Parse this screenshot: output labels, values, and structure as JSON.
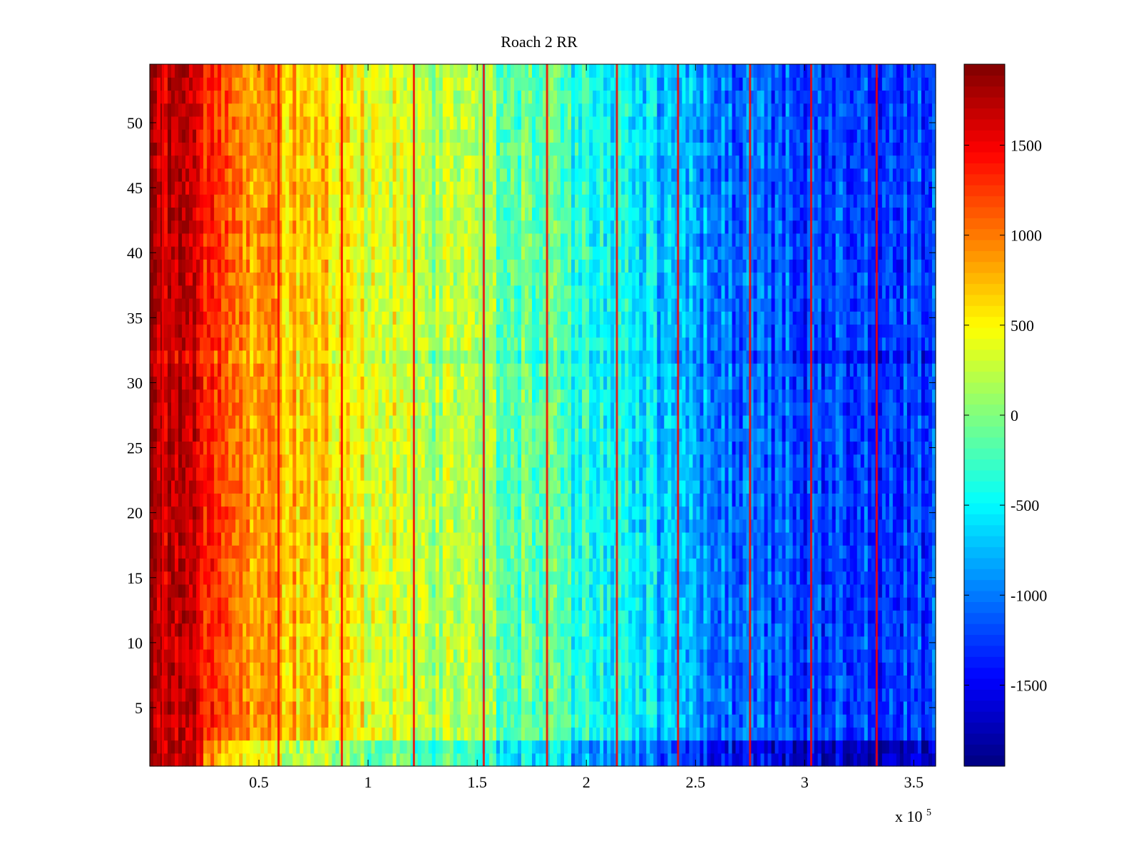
{
  "chart_data": {
    "type": "heatmap",
    "title": "Roach 2 RR",
    "xlabel": "",
    "ylabel": "",
    "x_multiplier_label": {
      "base": "x 10",
      "exponent": "5"
    },
    "xlim": [
      0,
      3.6
    ],
    "ylim": [
      0.5,
      54.5
    ],
    "x_ticks": [
      0.5,
      1,
      1.5,
      2,
      2.5,
      3,
      3.5
    ],
    "x_tick_labels": [
      "0.5",
      "1",
      "1.5",
      "2",
      "2.5",
      "3",
      "3.5"
    ],
    "y_ticks": [
      5,
      10,
      15,
      20,
      25,
      30,
      35,
      40,
      45,
      50
    ],
    "y_tick_labels": [
      "5",
      "10",
      "15",
      "20",
      "25",
      "30",
      "35",
      "40",
      "45",
      "50"
    ],
    "rows": 54,
    "colormap": "jet",
    "colorbar": {
      "clim": [
        -1950,
        1950
      ],
      "ticks": [
        -1500,
        -1000,
        -500,
        0,
        500,
        1000,
        1500
      ],
      "tick_labels": [
        "-1500",
        "-1000",
        "-500",
        "0",
        "500",
        "1000",
        "1500"
      ]
    },
    "trend_profile": [
      {
        "x": 0.0,
        "value": 1900
      },
      {
        "x": 0.05,
        "value": 1750
      },
      {
        "x": 0.1,
        "value": 1650
      },
      {
        "x": 0.2,
        "value": 1550
      },
      {
        "x": 0.28,
        "value": 1200
      },
      {
        "x": 0.45,
        "value": 950
      },
      {
        "x": 0.6,
        "value": 800
      },
      {
        "x": 0.88,
        "value": 550
      },
      {
        "x": 1.2,
        "value": 300
      },
      {
        "x": 1.5,
        "value": 50
      },
      {
        "x": 1.8,
        "value": -200
      },
      {
        "x": 2.1,
        "value": -450
      },
      {
        "x": 2.4,
        "value": -750
      },
      {
        "x": 2.7,
        "value": -1050
      },
      {
        "x": 3.0,
        "value": -1200
      },
      {
        "x": 3.3,
        "value": -1200
      },
      {
        "x": 3.6,
        "value": -1250
      }
    ],
    "striations_x": [
      0.06,
      0.59,
      0.88,
      1.21,
      1.53,
      1.82,
      2.14,
      2.42,
      2.75,
      3.03,
      3.33
    ]
  }
}
